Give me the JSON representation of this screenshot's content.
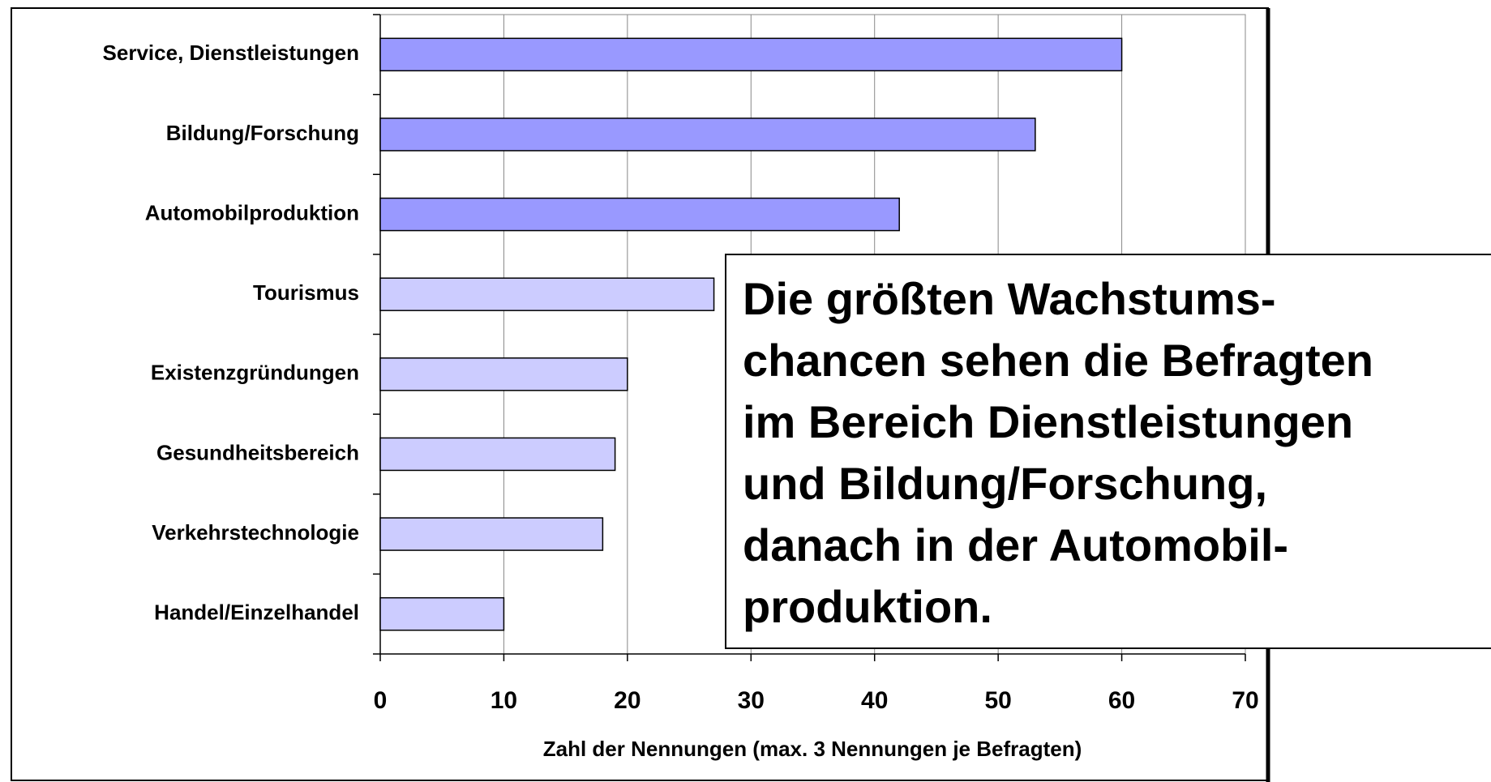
{
  "chart_data": {
    "type": "barh",
    "categories": [
      "Service, Dienstleistungen",
      "Bildung/Forschung",
      "Automobilproduktion",
      "Tourismus",
      "Existenzgründungen",
      "Gesundheitsbereich",
      "Verkehrstechnologie",
      "Handel/Einzelhandel"
    ],
    "values": [
      60,
      53,
      42,
      27,
      20,
      19,
      18,
      10
    ],
    "colors": [
      "#9999ff",
      "#9999ff",
      "#9999ff",
      "#ccccff",
      "#ccccff",
      "#ccccff",
      "#ccccff",
      "#ccccff"
    ],
    "xlim": [
      0,
      70
    ],
    "xticks": [
      0,
      10,
      20,
      30,
      40,
      50,
      60,
      70
    ],
    "grid": true,
    "xlabel": "Zahl der Nennungen (max. 3 Nennungen je Befragten)",
    "annotation": [
      "Die größten Wachstums-",
      "chancen sehen die Befragten",
      "im Bereich Dienstleistungen",
      "und Bildung/Forschung,",
      "danach in der Automobil-",
      "produktion."
    ]
  }
}
